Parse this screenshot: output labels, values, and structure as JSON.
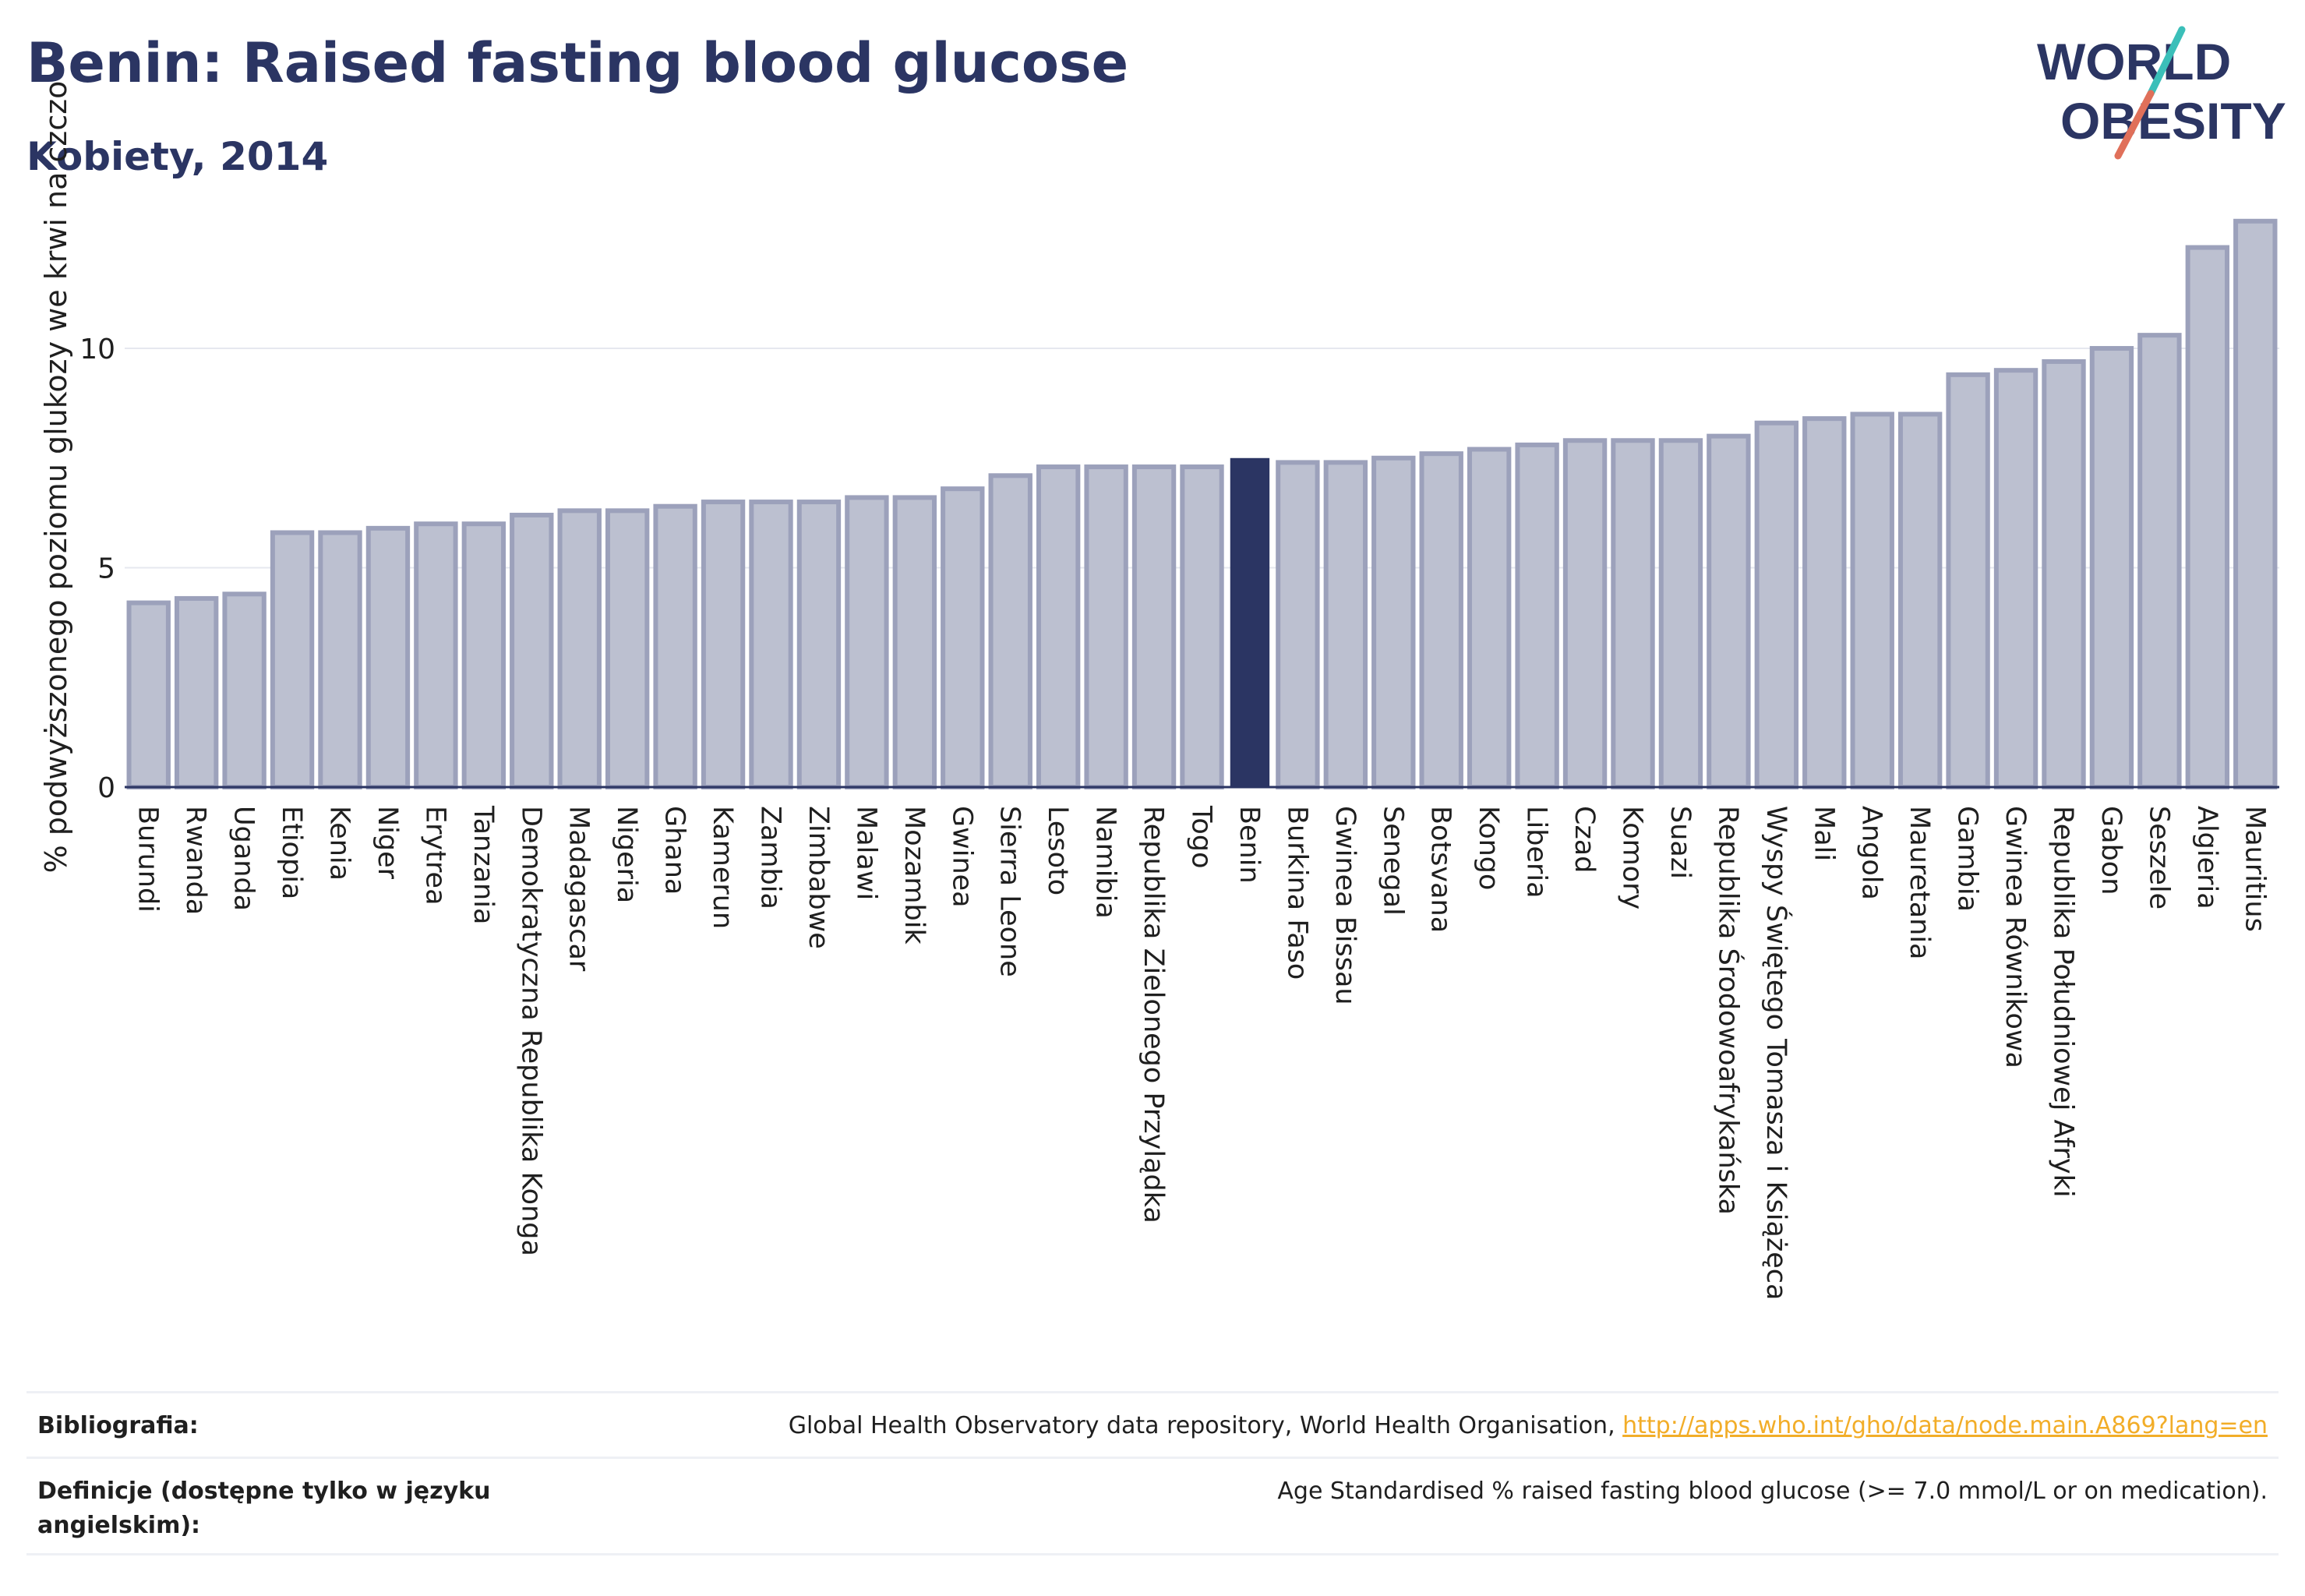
{
  "header": {
    "title": "Benin: Raised fasting blood glucose",
    "subtitle": "Kobiety, 2014"
  },
  "logo": {
    "line1": "WORLD",
    "line2": "OBESITY",
    "accent_teal": "#3bbfb9",
    "accent_coral": "#e0705a"
  },
  "colors": {
    "bar": "#bcc0d0",
    "bar_edge": "#9ca1bb",
    "highlight": "#2b3563",
    "grid": "#e6e8ef",
    "axis": "#2b3563"
  },
  "chart_data": {
    "type": "bar",
    "title": "Benin: Raised fasting blood glucose",
    "subtitle": "Kobiety, 2014",
    "ylabel": "% podwyższonego poziomu glukozy we krwi na czczo",
    "xlabel": "",
    "ylim": [
      0,
      13.5
    ],
    "yticks": [
      0,
      5,
      10
    ],
    "grid": true,
    "highlight": "Benin",
    "categories": [
      "Burundi",
      "Rwanda",
      "Uganda",
      "Etiopia",
      "Kenia",
      "Niger",
      "Erytrea",
      "Tanzania",
      "Demokratyczna Republika Konga",
      "Madagascar",
      "Nigeria",
      "Ghana",
      "Kamerun",
      "Zambia",
      "Zimbabwe",
      "Malawi",
      "Mozambik",
      "Gwinea",
      "Sierra Leone",
      "Lesoto",
      "Namibia",
      "Republika Zielonego Przylądka",
      "Togo",
      "Benin",
      "Burkina Faso",
      "Gwinea Bissau",
      "Senegal",
      "Botsvana",
      "Kongo",
      "Liberia",
      "Czad",
      "Komory",
      "Suazi",
      "Republika Środowoafrykańska",
      "Wyspy Świętego Tomasza i Książęca",
      "Mali",
      "Angola",
      "Mauretania",
      "Gambia",
      "Gwinea Równikowa",
      "Republika Południowej Afryki",
      "Gabon",
      "Seszele",
      "Algieria",
      "Mauritius"
    ],
    "values": [
      4.2,
      4.3,
      4.4,
      5.8,
      5.8,
      5.9,
      6.0,
      6.0,
      6.2,
      6.3,
      6.3,
      6.4,
      6.5,
      6.5,
      6.5,
      6.6,
      6.6,
      6.8,
      7.1,
      7.3,
      7.3,
      7.3,
      7.3,
      7.5,
      7.4,
      7.4,
      7.5,
      7.6,
      7.7,
      7.8,
      7.9,
      7.9,
      7.9,
      8.0,
      8.3,
      8.4,
      8.5,
      8.5,
      9.4,
      9.5,
      9.7,
      10.0,
      10.3,
      12.3,
      12.9
    ]
  },
  "footer": {
    "bibliography_label": "Bibliografia:",
    "bibliography_text": "Global Health Observatory data repository, World Health Organisation, ",
    "bibliography_link": "http://apps.who.int/gho/data/node.main.A869?lang=en",
    "definitions_label": "Definicje (dostępne tylko w języku angielskim):",
    "definitions_text": "Age Standardised % raised fasting blood glucose (>= 7.0 mmol/L or on medication)."
  }
}
